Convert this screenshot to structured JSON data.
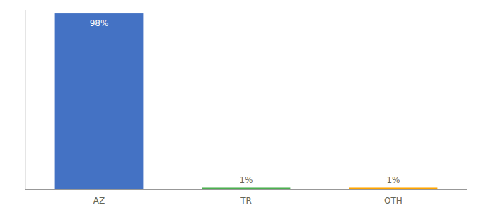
{
  "chart_data": {
    "type": "bar",
    "categories": [
      "AZ",
      "TR",
      "OTH"
    ],
    "values": [
      98,
      1,
      1
    ],
    "value_labels": [
      "98%",
      "1%",
      "1%"
    ],
    "colors": [
      "#4472c4",
      "#4caf50",
      "#ffa500"
    ],
    "ylim": [
      0,
      100
    ],
    "data_labels": true,
    "tick_labels": "x",
    "grid": false
  }
}
